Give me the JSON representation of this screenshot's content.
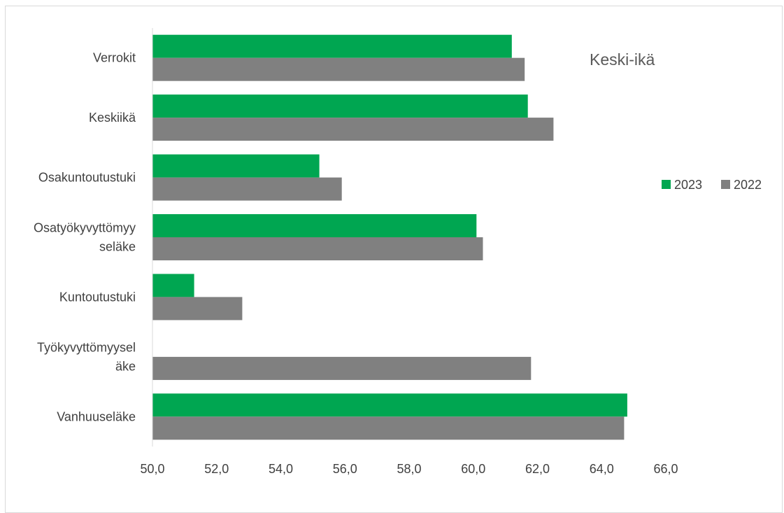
{
  "chart_data": {
    "type": "bar",
    "orientation": "horizontal",
    "title": "Keski-ikä",
    "xlabel": "",
    "ylabel": "",
    "xlim": [
      50,
      66
    ],
    "ticks": [
      50,
      52,
      54,
      56,
      58,
      60,
      62,
      64,
      66
    ],
    "tick_labels": [
      "50,0",
      "52,0",
      "54,0",
      "56,0",
      "58,0",
      "60,0",
      "62,0",
      "64,0",
      "66,0"
    ],
    "categories": [
      "Verrokit",
      "Keskiikä",
      "Osakuntoutustuki",
      "Osatyökyvyttömyyseläke",
      "Kuntoutustuki",
      "Työkyvyttömyyseläke",
      "Vanhuuseläke"
    ],
    "category_label_lines": [
      [
        "Verrokit"
      ],
      [
        "Keskiikä"
      ],
      [
        "Osakuntoutustuki"
      ],
      [
        "Osatyökyvyttömyy",
        "seläke"
      ],
      [
        "Kuntoutustuki"
      ],
      [
        "Työkyvyttömyysel",
        "äke"
      ],
      [
        "Vanhuuseläke"
      ]
    ],
    "series": [
      {
        "name": "2023",
        "color": "#00a651",
        "values": [
          61.2,
          61.7,
          55.2,
          60.1,
          51.3,
          null,
          64.8
        ]
      },
      {
        "name": "2022",
        "color": "#808080",
        "values": [
          61.6,
          62.5,
          55.9,
          60.3,
          52.8,
          61.8,
          64.7
        ]
      }
    ],
    "legend_position": "right",
    "grid": false
  }
}
